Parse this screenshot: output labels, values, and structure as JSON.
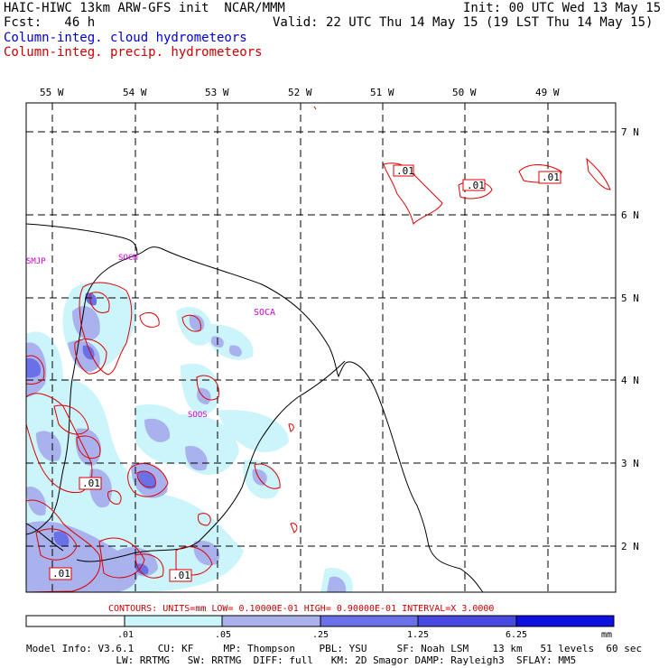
{
  "header": {
    "title": "HAIC-HIWC 13km ARW-GFS init  NCAR/MMM",
    "init": "Init: 00 UTC Wed 13 May 15",
    "fcst": "Fcst:   46 h",
    "valid": "Valid: 22 UTC Thu 14 May 15 (19 LST Thu 14 May 15)",
    "legend_cloud": "Column-integ. cloud hydrometeors",
    "legend_precip": "Column-integ. precip. hydrometeors"
  },
  "map": {
    "lon_labels": [
      "55 W",
      "54 W",
      "53 W",
      "52 W",
      "51 W",
      "50 W",
      "49 W"
    ],
    "lat_labels": [
      "7 N",
      "6 N",
      "5 N",
      "4 N",
      "3 N",
      "2 N"
    ],
    "stations": [
      "SMJP",
      "SOCM",
      "SOCA",
      "SOOS"
    ],
    "contour_labels": [
      ".01",
      ".01",
      ".01",
      ".01",
      ".01",
      ".01"
    ]
  },
  "contours_info": "CONTOURS:  UNITS=mm  LOW= 0.10000E-01  HIGH= 0.90000E-01  INTERVAL=X  3.0000",
  "colorbar": {
    "ticks": [
      ".01",
      ".05",
      ".25",
      "1.25",
      "6.25"
    ],
    "unit": "mm",
    "colors": [
      "#ffffff",
      "#ccf5fb",
      "#aab2ee",
      "#6a70e8",
      "#4a4ae0",
      "#1010e0"
    ]
  },
  "footer": {
    "line1": "Model Info: V3.6.1    CU: KF     MP: Thompson    PBL: YSU     SF: Noah LSM    13 km   51 levels  60 sec",
    "line2": "               LW: RRTMG   SW: RRTMG  DIFF: full   KM: 2D Smagor DAMP: Rayleigh3  SFLAY: MM5"
  },
  "colors": {
    "cloud_light": "#ccf5fb",
    "cloud_mid": "#aab2ee",
    "cloud_dark": "#6a70e8",
    "precip_contour": "#dd0000",
    "station_label": "#cc00cc"
  }
}
